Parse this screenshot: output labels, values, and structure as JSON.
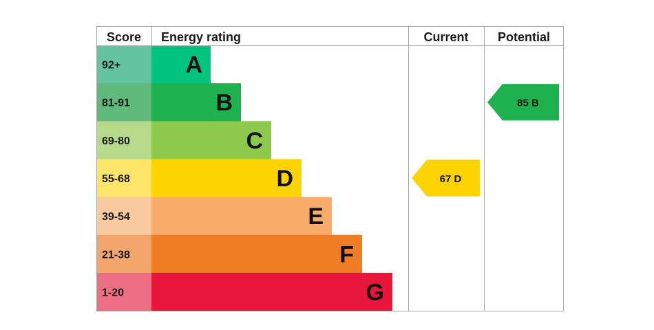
{
  "chart_data": {
    "type": "bar",
    "headers": {
      "score": "Score",
      "energy_rating": "Energy rating",
      "current": "Current",
      "potential": "Potential"
    },
    "bands": [
      {
        "score_range": "92+",
        "letter": "A",
        "color": "#02c47f",
        "score_color": "#64c4a1"
      },
      {
        "score_range": "81-91",
        "letter": "B",
        "color": "#1eb14f",
        "score_color": "#5fba7c"
      },
      {
        "score_range": "69-80",
        "letter": "C",
        "color": "#8dca4c",
        "score_color": "#b6da89"
      },
      {
        "score_range": "55-68",
        "letter": "D",
        "color": "#fdd400",
        "score_color": "#fde56a"
      },
      {
        "score_range": "39-54",
        "letter": "E",
        "color": "#f9ab6a",
        "score_color": "#f9c9a0"
      },
      {
        "score_range": "21-38",
        "letter": "F",
        "color": "#ee7d24",
        "score_color": "#f3a66c"
      },
      {
        "score_range": "1-20",
        "letter": "G",
        "color": "#e8163b",
        "score_color": "#ee6f84"
      }
    ],
    "current": {
      "value": 67,
      "letter": "D",
      "label": "67  D",
      "color": "#fdd400"
    },
    "potential": {
      "value": 85,
      "letter": "B",
      "label": "85  B",
      "color": "#1eb14f"
    }
  }
}
